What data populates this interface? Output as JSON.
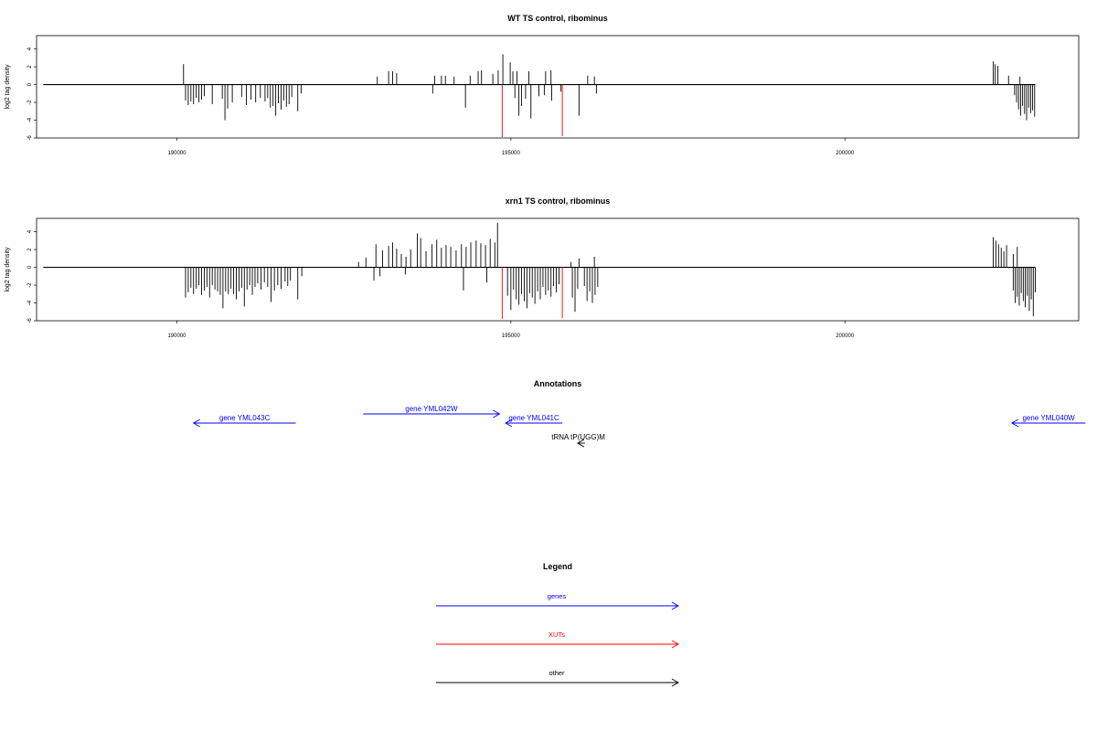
{
  "chart_data": [
    {
      "type": "bar",
      "title": "WT TS control, ribominus",
      "ylabel": "log2 tag density",
      "xlim": [
        187900,
        203500
      ],
      "ylim": [
        -6,
        5.5
      ],
      "xticks": [
        190000,
        195000,
        200000
      ],
      "yticks": [
        -6,
        -4,
        -2,
        0,
        2,
        4
      ],
      "baseline_range": [
        188000,
        202850
      ],
      "black_pos": [
        [
          190100,
          2.3
        ],
        [
          193000,
          0.9
        ],
        [
          193170,
          1.5
        ],
        [
          193230,
          1.5
        ],
        [
          193290,
          1.3
        ],
        [
          193860,
          1.0
        ],
        [
          193960,
          1.0
        ],
        [
          194020,
          1.0
        ],
        [
          194150,
          0.9
        ],
        [
          194390,
          1.0
        ],
        [
          194510,
          1.5
        ],
        [
          194560,
          1.6
        ],
        [
          194730,
          1.2
        ],
        [
          194810,
          1.6
        ],
        [
          194880,
          3.4
        ],
        [
          194990,
          2.5
        ],
        [
          195030,
          1.5
        ],
        [
          195090,
          1.5
        ],
        [
          195270,
          1.5
        ],
        [
          195520,
          1.5
        ],
        [
          195600,
          1.6
        ],
        [
          196150,
          1.0
        ],
        [
          196250,
          0.9
        ],
        [
          202220,
          2.6
        ],
        [
          202250,
          2.3
        ],
        [
          202290,
          2.1
        ],
        [
          202450,
          1.0
        ],
        [
          202620,
          0.9
        ]
      ],
      "black_neg": [
        [
          190130,
          -1.8
        ],
        [
          190170,
          -2.3
        ],
        [
          190210,
          -1.9
        ],
        [
          190250,
          -2.2
        ],
        [
          190290,
          -1.5
        ],
        [
          190330,
          -2.0
        ],
        [
          190370,
          -1.7
        ],
        [
          190410,
          -1.3
        ],
        [
          190530,
          -2.2
        ],
        [
          190680,
          -1.6
        ],
        [
          190720,
          -4.0
        ],
        [
          190760,
          -2.7
        ],
        [
          190830,
          -2.0
        ],
        [
          190970,
          -1.4
        ],
        [
          191040,
          -2.3
        ],
        [
          191110,
          -1.7
        ],
        [
          191180,
          -2.0
        ],
        [
          191250,
          -1.5
        ],
        [
          191320,
          -1.9
        ],
        [
          191360,
          -1.5
        ],
        [
          191400,
          -2.6
        ],
        [
          191440,
          -2.4
        ],
        [
          191480,
          -3.5
        ],
        [
          191520,
          -2.1
        ],
        [
          191560,
          -2.8
        ],
        [
          191600,
          -1.8
        ],
        [
          191640,
          -2.5
        ],
        [
          191680,
          -2.2
        ],
        [
          191720,
          -1.4
        ],
        [
          191810,
          -3.0
        ],
        [
          191860,
          -1.0
        ],
        [
          193830,
          -1.0
        ],
        [
          194320,
          -2.6
        ],
        [
          195060,
          -1.5
        ],
        [
          195120,
          -3.5
        ],
        [
          195160,
          -2.4
        ],
        [
          195220,
          -1.6
        ],
        [
          195300,
          -3.8
        ],
        [
          195420,
          -1.3
        ],
        [
          195500,
          -1.2
        ],
        [
          195610,
          -1.8
        ],
        [
          195750,
          -0.8
        ],
        [
          196020,
          -3.5
        ],
        [
          196280,
          -1.0
        ],
        [
          202540,
          -1.2
        ],
        [
          202570,
          -2.0
        ],
        [
          202600,
          -2.8
        ],
        [
          202630,
          -3.5
        ],
        [
          202660,
          -2.4
        ],
        [
          202690,
          -3.3
        ],
        [
          202720,
          -4.0
        ],
        [
          202750,
          -2.6
        ],
        [
          202780,
          -3.2
        ],
        [
          202810,
          -2.9
        ],
        [
          202840,
          -3.6
        ]
      ],
      "red_neg": [
        [
          194870,
          -5.9
        ],
        [
          195770,
          -5.8
        ]
      ],
      "colors": {
        "bars": "#000000",
        "xut": "#ff0000"
      }
    },
    {
      "type": "bar",
      "title": "xrn1 TS control, ribominus",
      "ylabel": "log2 tag density",
      "xlim": [
        187900,
        203500
      ],
      "ylim": [
        -6,
        5.5
      ],
      "xticks": [
        190000,
        195000,
        200000
      ],
      "yticks": [
        -6,
        -4,
        -2,
        0,
        2,
        4
      ],
      "baseline_range": [
        188000,
        202850
      ],
      "black_pos": [
        [
          192720,
          0.6
        ],
        [
          192830,
          1.1
        ],
        [
          192980,
          2.6
        ],
        [
          193080,
          1.9
        ],
        [
          193170,
          2.4
        ],
        [
          193230,
          2.8
        ],
        [
          193290,
          2.1
        ],
        [
          193360,
          1.5
        ],
        [
          193430,
          1.2
        ],
        [
          193500,
          2.0
        ],
        [
          193600,
          3.8
        ],
        [
          193650,
          3.3
        ],
        [
          193730,
          1.8
        ],
        [
          193820,
          2.6
        ],
        [
          193890,
          3.1
        ],
        [
          193960,
          2.2
        ],
        [
          194030,
          2.5
        ],
        [
          194100,
          2.3
        ],
        [
          194180,
          1.9
        ],
        [
          194260,
          2.6
        ],
        [
          194330,
          2.3
        ],
        [
          194400,
          2.8
        ],
        [
          194480,
          3.0
        ],
        [
          194550,
          2.7
        ],
        [
          194620,
          2.5
        ],
        [
          194690,
          3.2
        ],
        [
          194760,
          2.8
        ],
        [
          194800,
          5.0
        ],
        [
          195900,
          0.6
        ],
        [
          196020,
          1.0
        ],
        [
          196250,
          1.2
        ],
        [
          202220,
          3.4
        ],
        [
          202260,
          3.0
        ],
        [
          202300,
          2.6
        ],
        [
          202340,
          2.2
        ],
        [
          202380,
          1.8
        ],
        [
          202420,
          2.5
        ],
        [
          202520,
          1.5
        ],
        [
          202580,
          2.3
        ]
      ],
      "black_neg": [
        [
          190130,
          -3.4
        ],
        [
          190170,
          -2.8
        ],
        [
          190210,
          -2.3
        ],
        [
          190250,
          -3.0
        ],
        [
          190290,
          -2.4
        ],
        [
          190330,
          -2.0
        ],
        [
          190370,
          -3.1
        ],
        [
          190410,
          -2.6
        ],
        [
          190450,
          -2.2
        ],
        [
          190490,
          -3.4
        ],
        [
          190530,
          -2.0
        ],
        [
          190570,
          -2.5
        ],
        [
          190610,
          -2.7
        ],
        [
          190650,
          -3.1
        ],
        [
          190690,
          -4.6
        ],
        [
          190730,
          -2.7
        ],
        [
          190770,
          -3.0
        ],
        [
          190810,
          -2.4
        ],
        [
          190850,
          -3.0
        ],
        [
          190890,
          -3.6
        ],
        [
          190930,
          -2.7
        ],
        [
          190970,
          -2.3
        ],
        [
          191010,
          -4.4
        ],
        [
          191050,
          -2.5
        ],
        [
          191090,
          -2.0
        ],
        [
          191130,
          -3.1
        ],
        [
          191170,
          -2.2
        ],
        [
          191210,
          -1.8
        ],
        [
          191260,
          -2.5
        ],
        [
          191310,
          -1.7
        ],
        [
          191360,
          -2.2
        ],
        [
          191410,
          -3.9
        ],
        [
          191460,
          -2.6
        ],
        [
          191510,
          -2.0
        ],
        [
          191560,
          -2.4
        ],
        [
          191620,
          -1.6
        ],
        [
          191660,
          -2.1
        ],
        [
          191700,
          -1.5
        ],
        [
          191810,
          -3.6
        ],
        [
          191870,
          -1.0
        ],
        [
          192950,
          -1.5
        ],
        [
          193040,
          -1.0
        ],
        [
          193420,
          -0.8
        ],
        [
          194290,
          -2.6
        ],
        [
          194640,
          -1.7
        ],
        [
          194950,
          -3.2
        ],
        [
          195000,
          -4.8
        ],
        [
          195040,
          -2.5
        ],
        [
          195080,
          -3.6
        ],
        [
          195120,
          -4.2
        ],
        [
          195160,
          -3.0
        ],
        [
          195200,
          -3.8
        ],
        [
          195240,
          -4.6
        ],
        [
          195280,
          -2.9
        ],
        [
          195320,
          -3.4
        ],
        [
          195360,
          -4.1
        ],
        [
          195400,
          -2.7
        ],
        [
          195440,
          -3.6
        ],
        [
          195480,
          -2.2
        ],
        [
          195520,
          -3.1
        ],
        [
          195560,
          -2.6
        ],
        [
          195600,
          -3.3
        ],
        [
          195640,
          -2.1
        ],
        [
          195680,
          -2.8
        ],
        [
          195720,
          -1.9
        ],
        [
          195920,
          -3.4
        ],
        [
          195960,
          -5.0
        ],
        [
          196000,
          -2.4
        ],
        [
          196100,
          -2.1
        ],
        [
          196140,
          -3.8
        ],
        [
          196180,
          -2.7
        ],
        [
          196220,
          -4.0
        ],
        [
          196260,
          -3.1
        ],
        [
          196300,
          -2.2
        ],
        [
          202520,
          -2.6
        ],
        [
          202550,
          -4.0
        ],
        [
          202580,
          -3.3
        ],
        [
          202610,
          -4.3
        ],
        [
          202640,
          -2.9
        ],
        [
          202670,
          -3.8
        ],
        [
          202700,
          -4.5
        ],
        [
          202730,
          -3.2
        ],
        [
          202760,
          -4.9
        ],
        [
          202790,
          -3.6
        ],
        [
          202820,
          -5.5
        ],
        [
          202850,
          -2.8
        ]
      ],
      "red_neg": [
        [
          194870,
          -5.8
        ],
        [
          195770,
          -5.7
        ]
      ],
      "colors": {
        "bars": "#000000",
        "xut": "#ff0000"
      }
    }
  ],
  "annotations": {
    "title": "Annotations",
    "features": [
      {
        "label": "gene YML043C",
        "start": 190250,
        "end": 191780,
        "dir": "left",
        "row": 2,
        "color": "#0000ff"
      },
      {
        "label": "gene YML042W",
        "start": 192790,
        "end": 194830,
        "dir": "right",
        "row": 1,
        "color": "#0000ff"
      },
      {
        "label": "gene YML041C",
        "start": 194920,
        "end": 195770,
        "dir": "left",
        "row": 2,
        "color": "#0000ff"
      },
      {
        "label": "tRNA tP(UGG)M",
        "start": 196000,
        "end": 196110,
        "dir": "left",
        "row": 4,
        "color": "#000000"
      },
      {
        "label": "gene YML040W",
        "start": 202500,
        "end": 203600,
        "dir": "left",
        "row": 2,
        "color": "#0000ff"
      }
    ]
  },
  "legend": {
    "title": "Legend",
    "items": [
      {
        "label": "genes",
        "color": "#0000ff"
      },
      {
        "label": "XUTs",
        "color": "#ff0000"
      },
      {
        "label": "other",
        "color": "#000000"
      }
    ]
  }
}
